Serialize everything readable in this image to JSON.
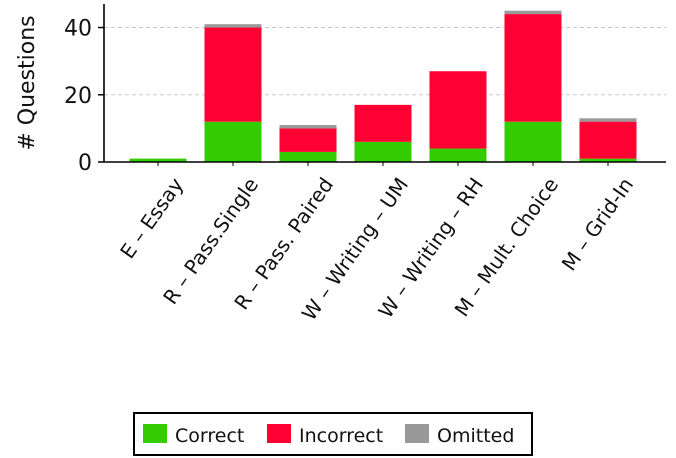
{
  "chart_data": {
    "type": "bar",
    "stacked": true,
    "categories": [
      "E – Essay",
      "R – Pass.Single",
      "R – Pass. Paired",
      "W – Writing – UM",
      "W – Writing – RH",
      "M – Mult. Choice",
      "M – Grid-In"
    ],
    "series": [
      {
        "name": "Correct",
        "color": "#33cc00",
        "values": [
          1,
          12,
          3,
          6,
          4,
          12,
          1
        ]
      },
      {
        "name": "Incorrect",
        "color": "#ff0033",
        "values": [
          0,
          28,
          7,
          11,
          23,
          32,
          11
        ]
      },
      {
        "name": "Omitted",
        "color": "#999999",
        "values": [
          0,
          1,
          1,
          0,
          0,
          1,
          1
        ]
      }
    ],
    "title": "",
    "xlabel": "",
    "ylabel": "# Questions",
    "ylim": [
      0,
      47
    ],
    "yticks": [
      0,
      20,
      40
    ],
    "grid": true,
    "legend_position": "bottom"
  }
}
